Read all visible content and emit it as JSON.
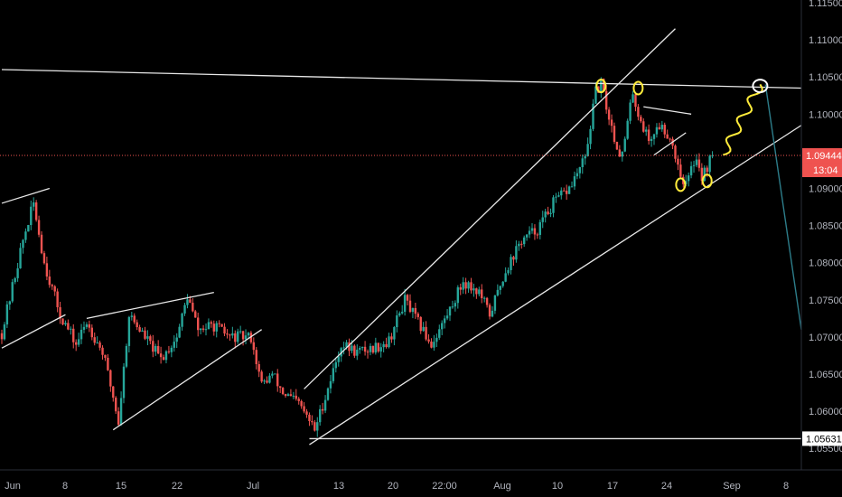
{
  "chart_data": {
    "type": "candlestick",
    "symbol_hint": "",
    "y_ticks": [
      "1.11500",
      "1.11000",
      "1.10500",
      "1.10000",
      "1.09500",
      "1.09000",
      "1.08500",
      "1.08000",
      "1.07500",
      "1.07000",
      "1.06500",
      "1.06000",
      "1.05500"
    ],
    "x_ticks": [
      "Jun",
      "8",
      "15",
      "22",
      "Jul",
      "13",
      "20",
      "22:00",
      "Aug",
      "10",
      "17",
      "24",
      "Sep",
      "8"
    ],
    "ylim": [
      1.0545,
      1.1165
    ],
    "price_path": [
      {
        "d": 0,
        "p": 1.0705
      },
      {
        "d": 4,
        "p": 1.083
      },
      {
        "d": 6,
        "p": 1.088
      },
      {
        "d": 8,
        "p": 1.08
      },
      {
        "d": 11,
        "p": 1.073
      },
      {
        "d": 14,
        "p": 1.069
      },
      {
        "d": 16,
        "p": 1.072
      },
      {
        "d": 19,
        "p": 1.068
      },
      {
        "d": 21,
        "p": 1.062
      },
      {
        "d": 22,
        "p": 1.0585
      },
      {
        "d": 24,
        "p": 1.073
      },
      {
        "d": 27,
        "p": 1.07
      },
      {
        "d": 30,
        "p": 1.067
      },
      {
        "d": 33,
        "p": 1.07
      },
      {
        "d": 35,
        "p": 1.0755
      },
      {
        "d": 37,
        "p": 1.071
      },
      {
        "d": 40,
        "p": 1.0715
      },
      {
        "d": 43,
        "p": 1.07
      },
      {
        "d": 47,
        "p": 1.07
      },
      {
        "d": 49,
        "p": 1.0635
      },
      {
        "d": 51,
        "p": 1.065
      },
      {
        "d": 53,
        "p": 1.0625
      },
      {
        "d": 56,
        "p": 1.061
      },
      {
        "d": 59,
        "p": 1.0575
      },
      {
        "d": 61,
        "p": 1.062
      },
      {
        "d": 64,
        "p": 1.069
      },
      {
        "d": 67,
        "p": 1.068
      },
      {
        "d": 70,
        "p": 1.0685
      },
      {
        "d": 73,
        "p": 1.0695
      },
      {
        "d": 76,
        "p": 1.075
      },
      {
        "d": 78,
        "p": 1.0725
      },
      {
        "d": 81,
        "p": 1.069
      },
      {
        "d": 84,
        "p": 1.073
      },
      {
        "d": 87,
        "p": 1.0775
      },
      {
        "d": 90,
        "p": 1.076
      },
      {
        "d": 92,
        "p": 1.073
      },
      {
        "d": 95,
        "p": 1.079
      },
      {
        "d": 98,
        "p": 1.083
      },
      {
        "d": 101,
        "p": 1.0845
      },
      {
        "d": 104,
        "p": 1.088
      },
      {
        "d": 107,
        "p": 1.09
      },
      {
        "d": 110,
        "p": 1.094
      },
      {
        "d": 112,
        "p": 1.103
      },
      {
        "d": 113,
        "p": 1.104
      },
      {
        "d": 114,
        "p": 1.101
      },
      {
        "d": 116,
        "p": 1.0955
      },
      {
        "d": 117,
        "p": 1.0945
      },
      {
        "d": 119,
        "p": 1.103
      },
      {
        "d": 120,
        "p": 1.1
      },
      {
        "d": 122,
        "p": 1.0965
      },
      {
        "d": 124,
        "p": 1.0985
      },
      {
        "d": 126,
        "p": 1.097
      },
      {
        "d": 128,
        "p": 1.092
      },
      {
        "d": 129,
        "p": 1.0905
      },
      {
        "d": 131,
        "p": 1.0945
      },
      {
        "d": 132,
        "p": 1.0915
      },
      {
        "d": 134,
        "p": 1.0944
      }
    ],
    "last_day": 134,
    "current_price": {
      "value": 1.09444,
      "label": "1.09444",
      "time": "13:04"
    },
    "support_level": {
      "value": 1.05631,
      "label": "1.05631"
    },
    "projection": [
      {
        "d": 136,
        "p": 1.0945
      },
      {
        "d": 137,
        "p": 1.0985
      },
      {
        "d": 138,
        "p": 1.096
      },
      {
        "d": 139,
        "p": 1.1
      },
      {
        "d": 140,
        "p": 1.0975
      },
      {
        "d": 141,
        "p": 1.1015
      },
      {
        "d": 142,
        "p": 1.1005
      },
      {
        "d": 143,
        "p": 1.104
      }
    ],
    "projection_drop": [
      {
        "d": 144,
        "p": 1.104
      },
      {
        "d": 151,
        "p": 1.071
      }
    ],
    "trendlines": [
      {
        "from": {
          "d": 0,
          "p": 1.0685
        },
        "to": {
          "d": 12,
          "p": 1.073
        }
      },
      {
        "from": {
          "d": 0,
          "p": 1.088
        },
        "to": {
          "d": 9,
          "p": 1.09
        }
      },
      {
        "from": {
          "d": 21,
          "p": 1.0575
        },
        "to": {
          "d": 49,
          "p": 1.071
        }
      },
      {
        "from": {
          "d": 16,
          "p": 1.0725
        },
        "to": {
          "d": 40,
          "p": 1.076
        }
      },
      {
        "from": {
          "d": 0,
          "p": 1.106
        },
        "to": {
          "d": 151,
          "p": 1.1035
        }
      },
      {
        "from": {
          "d": 57,
          "p": 1.063
        },
        "to": {
          "d": 127,
          "p": 1.1115
        }
      },
      {
        "from": {
          "d": 58,
          "p": 1.0555
        },
        "to": {
          "d": 151,
          "p": 1.0985
        }
      },
      {
        "from": {
          "d": 121,
          "p": 1.101
        },
        "to": {
          "d": 130,
          "p": 1.1
        }
      },
      {
        "from": {
          "d": 123,
          "p": 1.0945
        },
        "to": {
          "d": 129,
          "p": 1.0975
        }
      }
    ],
    "markers": [
      {
        "d": 113,
        "p": 1.1038
      },
      {
        "d": 120,
        "p": 1.1035
      },
      {
        "d": 128,
        "p": 1.0905
      },
      {
        "d": 133,
        "p": 1.091
      }
    ],
    "target_marker": {
      "d": 143,
      "p": 1.1038
    },
    "colors": {
      "background": "#000000",
      "up": "#26a69a",
      "down": "#ef5350",
      "drawing": "#e8e8e8",
      "annotation": "#ffeb3b",
      "projection_drop": "#2d7d8a",
      "price_line": "#ef5350",
      "axis_text": "#b2b5be"
    },
    "grid": false
  }
}
